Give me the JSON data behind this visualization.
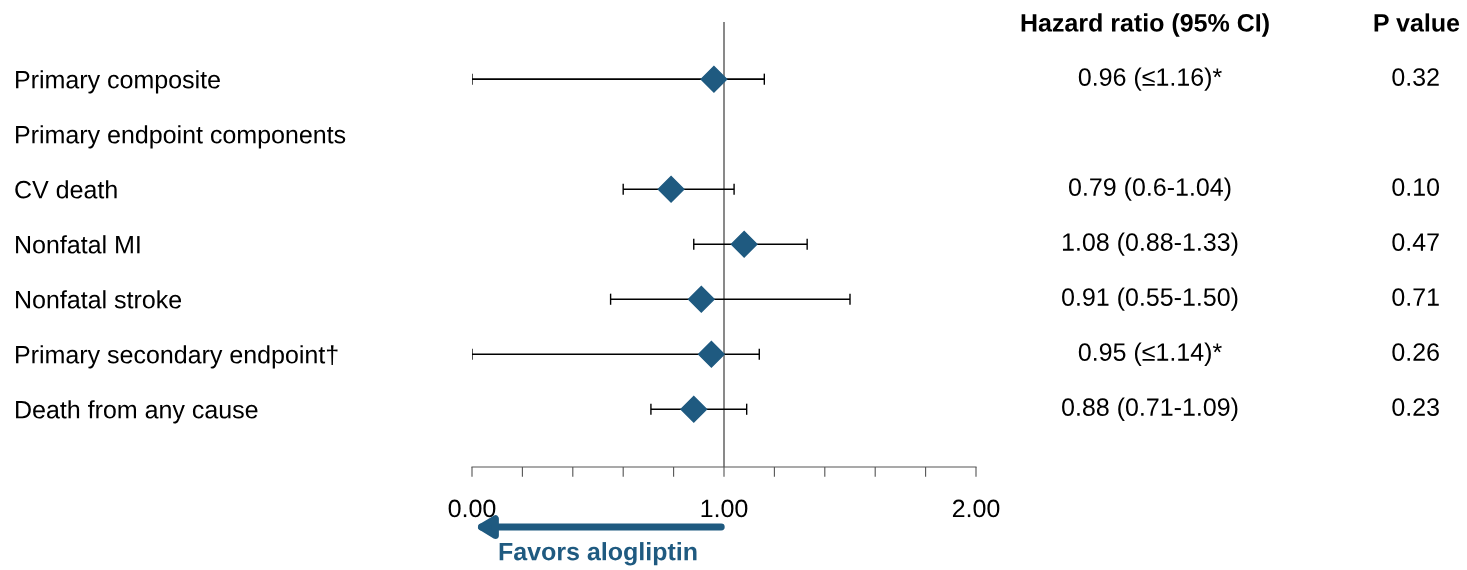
{
  "chart_data": {
    "type": "scatter",
    "orientation": "horizontal",
    "categories": [
      "Primary composite",
      "Primary endpoint components",
      "CV death",
      "Nonfatal MI",
      "Nonfatal stroke",
      "Primary secondary endpoint†",
      "Death from any cause"
    ],
    "values": [
      0.96,
      null,
      0.79,
      1.08,
      0.91,
      0.95,
      0.88
    ],
    "errors": [
      [
        0,
        1.16
      ],
      null,
      [
        0.6,
        1.04
      ],
      [
        0.88,
        1.33
      ],
      [
        0.55,
        1.5
      ],
      [
        0,
        1.14
      ],
      [
        0.71,
        1.09
      ]
    ],
    "value_labels": [
      "0.96 (≤1.16)*",
      null,
      "0.79 (0.6-1.04)",
      "1.08 (0.88-1.33)",
      "0.91 (0.55-1.50)",
      "0.95 (≤1.14)*",
      "0.88 (0.71-1.09)"
    ],
    "color": "#1f5a80",
    "marker": "diamond",
    "xlim": [
      0,
      2
    ],
    "xticks": [
      {
        "value": 0,
        "label": "0.00"
      },
      {
        "value": 0.2,
        "label": null
      },
      {
        "value": 0.4,
        "label": null
      },
      {
        "value": 0.6,
        "label": null
      },
      {
        "value": 0.8,
        "label": null
      },
      {
        "value": 1,
        "label": "1.00"
      },
      {
        "value": 1.2,
        "label": null
      },
      {
        "value": 1.4,
        "label": null
      },
      {
        "value": 1.6,
        "label": null
      },
      {
        "value": 1.8,
        "label": null
      },
      {
        "value": 2,
        "label": "2.00"
      }
    ],
    "ref_lines": [
      {
        "axis": "x",
        "value": 1,
        "color": "#555555"
      }
    ],
    "annotations": [
      "Hazard ratio (95% CI)",
      "P value",
      "0.32",
      "0.10",
      "0.47",
      "0.71",
      "0.26",
      "0.23",
      "Favors alogliptin"
    ],
    "grid": false
  }
}
